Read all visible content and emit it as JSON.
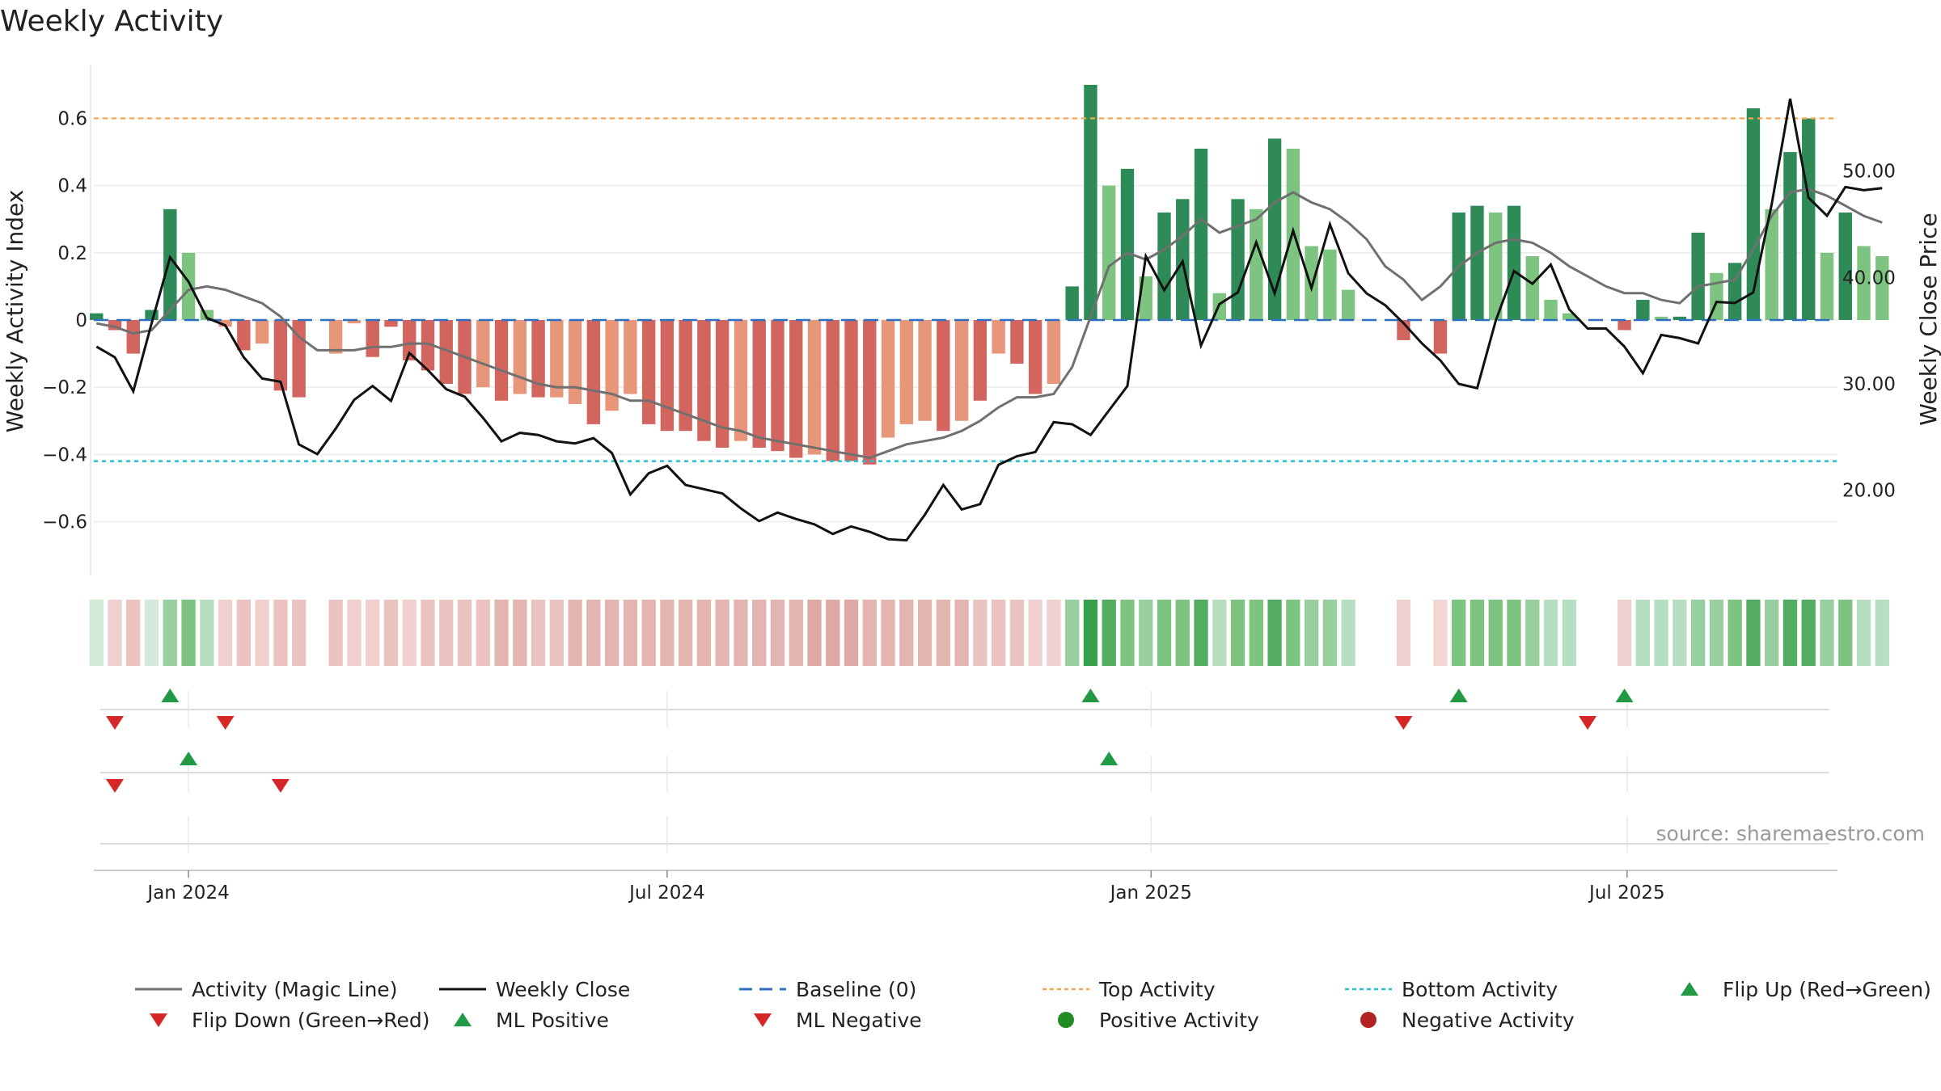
{
  "chart_data": {
    "type": "bar",
    "title": "Weekly Activity",
    "ylabel": "Weekly Activity Index",
    "y2label": "Weekly Close Price",
    "ylim": [
      -0.76,
      0.76
    ],
    "y2lim": [
      12,
      60
    ],
    "yticks": [
      0.6,
      0.4,
      0.2,
      0,
      -0.2,
      -0.4,
      -0.6
    ],
    "ytick_labels": [
      "0.6",
      "0.4",
      "0.2",
      "0",
      "−0.2",
      "−0.4",
      "−0.6"
    ],
    "y2ticks": [
      50,
      40,
      30,
      20
    ],
    "y2tick_labels": [
      "50.00",
      "40.00",
      "30.00",
      "20.00"
    ],
    "x_range": [
      "2023-11-26",
      "2025-09-19"
    ],
    "xticks": [
      {
        "date": "2024-01-01",
        "label": "Jan 2024"
      },
      {
        "date": "2024-07-01",
        "label": "Jul 2024"
      },
      {
        "date": "2025-01-01",
        "label": "Jan 2025"
      },
      {
        "date": "2025-07-01",
        "label": "Jul 2025"
      }
    ],
    "start_week": "2023-11-27",
    "activity": [
      0.02,
      -0.03,
      -0.1,
      0.03,
      0.33,
      0.2,
      0.03,
      -0.02,
      -0.09,
      -0.07,
      -0.21,
      -0.23,
      null,
      -0.1,
      -0.01,
      -0.11,
      -0.02,
      -0.12,
      -0.15,
      -0.19,
      -0.22,
      -0.2,
      -0.24,
      -0.22,
      -0.23,
      -0.23,
      -0.25,
      -0.31,
      -0.27,
      -0.22,
      -0.31,
      -0.33,
      -0.33,
      -0.36,
      -0.38,
      -0.36,
      -0.38,
      -0.39,
      -0.41,
      -0.4,
      -0.42,
      -0.42,
      -0.43,
      -0.35,
      -0.31,
      -0.3,
      -0.33,
      -0.3,
      -0.24,
      -0.1,
      -0.13,
      -0.22,
      -0.19,
      0.1,
      0.7,
      0.4,
      0.45,
      0.13,
      0.32,
      0.36,
      0.51,
      0.08,
      0.36,
      0.33,
      0.54,
      0.51,
      0.22,
      0.21,
      0.09,
      null,
      null,
      -0.06,
      null,
      -0.1,
      0.32,
      0.34,
      0.32,
      0.34,
      0.19,
      0.06,
      0.02,
      null,
      null,
      -0.03,
      0.06,
      0.01,
      0.01,
      0.26,
      0.14,
      0.17,
      0.63,
      0.33,
      0.5,
      0.6,
      0.2,
      0.32,
      0.22,
      0.19
    ],
    "bar_shades": [
      "m",
      "m",
      "m",
      "m",
      "d",
      "l",
      "l",
      "l",
      "m",
      "l",
      "m",
      "m",
      null,
      "l",
      "l",
      "m",
      "m",
      "m",
      "m",
      "m",
      "m",
      "l",
      "m",
      "l",
      "m",
      "l",
      "l",
      "m",
      "l",
      "l",
      "m",
      "m",
      "m",
      "m",
      "m",
      "l",
      "m",
      "m",
      "m",
      "l",
      "m",
      "m",
      "m",
      "l",
      "l",
      "l",
      "m",
      "l",
      "m",
      "l",
      "m",
      "m",
      "l",
      "d",
      "d",
      "l",
      "d",
      "l",
      "d",
      "d",
      "d",
      "l",
      "d",
      "l",
      "d",
      "l",
      "l",
      "l",
      "l",
      null,
      null,
      "m",
      null,
      "m",
      "d",
      "d",
      "l",
      "d",
      "l",
      "l",
      "l",
      null,
      null,
      "m",
      "d",
      "l",
      "d",
      "d",
      "l",
      "d",
      "d",
      "l",
      "d",
      "d",
      "l",
      "d",
      "l",
      "l"
    ],
    "heat_shades": [
      0,
      1,
      2,
      0,
      2,
      3,
      1,
      1,
      2,
      1,
      2,
      2,
      null,
      2,
      1,
      1,
      2,
      1,
      2,
      2,
      2,
      2,
      3,
      3,
      2,
      2,
      3,
      3,
      3,
      3,
      3,
      3,
      3,
      3,
      3,
      3,
      3,
      3,
      3,
      4,
      4,
      4,
      3,
      3,
      3,
      3,
      3,
      3,
      2,
      2,
      2,
      1,
      1,
      2,
      5,
      4,
      3,
      2,
      3,
      3,
      4,
      1,
      3,
      3,
      4,
      3,
      2,
      2,
      1,
      0,
      1,
      1,
      1,
      0,
      3,
      3,
      3,
      3,
      2,
      1,
      1,
      0,
      1,
      1,
      1,
      1,
      1,
      2,
      2,
      3,
      4,
      2,
      4,
      4,
      2,
      3,
      1,
      1
    ],
    "magic_line": [
      -0.01,
      -0.02,
      -0.04,
      -0.03,
      0.03,
      0.09,
      0.1,
      0.09,
      0.07,
      0.05,
      0.01,
      -0.05,
      -0.09,
      -0.09,
      -0.09,
      -0.08,
      -0.08,
      -0.07,
      -0.07,
      -0.09,
      -0.11,
      -0.13,
      -0.15,
      -0.17,
      -0.19,
      -0.2,
      -0.2,
      -0.21,
      -0.22,
      -0.24,
      -0.24,
      -0.26,
      -0.28,
      -0.3,
      -0.32,
      -0.33,
      -0.35,
      -0.36,
      -0.37,
      -0.38,
      -0.39,
      -0.4,
      -0.41,
      -0.39,
      -0.37,
      -0.36,
      -0.35,
      -0.33,
      -0.3,
      -0.26,
      -0.23,
      -0.23,
      -0.22,
      -0.14,
      0.01,
      0.16,
      0.2,
      0.18,
      0.21,
      0.25,
      0.3,
      0.26,
      0.28,
      0.3,
      0.35,
      0.38,
      0.35,
      0.33,
      0.29,
      0.24,
      0.16,
      0.12,
      0.06,
      0.1,
      0.16,
      0.2,
      0.23,
      0.24,
      0.23,
      0.2,
      0.16,
      0.13,
      0.1,
      0.08,
      0.08,
      0.06,
      0.05,
      0.1,
      0.11,
      0.12,
      0.21,
      0.31,
      0.38,
      0.39,
      0.37,
      0.34,
      0.31,
      0.29
    ],
    "weekly_close": [
      33.5,
      32.5,
      29.3,
      35.7,
      41.9,
      39.6,
      36.2,
      35.5,
      32.5,
      30.5,
      30.2,
      24.3,
      23.4,
      25.8,
      28.5,
      29.8,
      28.4,
      32.9,
      31.3,
      29.5,
      28.8,
      26.8,
      24.6,
      25.4,
      25.2,
      24.6,
      24.4,
      24.9,
      23.5,
      19.6,
      21.6,
      22.3,
      20.5,
      20.1,
      19.7,
      18.3,
      17.1,
      17.9,
      17.3,
      16.8,
      15.9,
      16.6,
      16.1,
      15.4,
      15.3,
      17.7,
      20.5,
      18.2,
      18.7,
      22.4,
      23.2,
      23.6,
      26.4,
      26.2,
      25.2,
      27.5,
      29.8,
      42.0,
      38.8,
      41.5,
      33.6,
      37.5,
      38.6,
      43.3,
      38.5,
      44.4,
      39.0,
      45.0,
      40.4,
      38.5,
      37.4,
      35.7,
      33.8,
      32.2,
      30.0,
      29.6,
      35.9,
      40.6,
      39.4,
      41.2,
      37.0,
      35.2,
      35.2,
      33.5,
      31.0,
      34.6,
      34.3,
      33.8,
      37.7,
      37.6,
      38.6,
      46.9,
      56.8,
      47.5,
      45.8,
      48.5,
      48.2,
      48.4
    ],
    "series": [
      {
        "name": "Activity (Magic Line)",
        "color": "#707070"
      },
      {
        "name": "Weekly Close",
        "color": "#111111"
      },
      {
        "name": "Baseline (0)",
        "color": "#2f6fbf",
        "value": 0
      },
      {
        "name": "Top Activity",
        "color": "#f5a74a",
        "value": 0.6
      },
      {
        "name": "Bottom Activity",
        "color": "#22c0d0",
        "value": -0.42
      }
    ],
    "flip_up_weeks": [
      4,
      54,
      74,
      83
    ],
    "flip_down_weeks": [
      1,
      7,
      71,
      81
    ],
    "ml_positive_weeks": [
      5,
      55
    ],
    "ml_negative_weeks": [
      1,
      10
    ],
    "colors": {
      "pos_dark": "#2e8b57",
      "pos_light": "#7cc47f",
      "neg_dark": "#cd5c5c",
      "neg_mid": "#d2665e",
      "neg_light": "#e8967a",
      "up_marker": "#229944",
      "down_marker": "#d62728",
      "neg_activity": "#b22222",
      "pos_activity": "#228b22"
    }
  },
  "source": "source: sharemaestro.com",
  "legend": [
    {
      "label": "Activity (Magic Line)",
      "kind": "line",
      "color": "#707070"
    },
    {
      "label": "Weekly Close",
      "kind": "line",
      "color": "#111111"
    },
    {
      "label": "Baseline (0)",
      "kind": "dash",
      "color": "#2f6fbf"
    },
    {
      "label": "Top Activity",
      "kind": "dot",
      "color": "#f5a74a"
    },
    {
      "label": "Bottom Activity",
      "kind": "dot",
      "color": "#22c0d0"
    },
    {
      "label": "Flip Up (Red→Green)",
      "kind": "up",
      "color": "#229944"
    },
    {
      "label": "Flip Down (Green→Red)",
      "kind": "down",
      "color": "#d62728"
    },
    {
      "label": "ML Positive",
      "kind": "up",
      "color": "#229944"
    },
    {
      "label": "ML Negative",
      "kind": "down",
      "color": "#d62728"
    },
    {
      "label": "Positive Activity",
      "kind": "circle",
      "color": "#228b22"
    },
    {
      "label": "Negative Activity",
      "kind": "circle",
      "color": "#b22222"
    }
  ]
}
